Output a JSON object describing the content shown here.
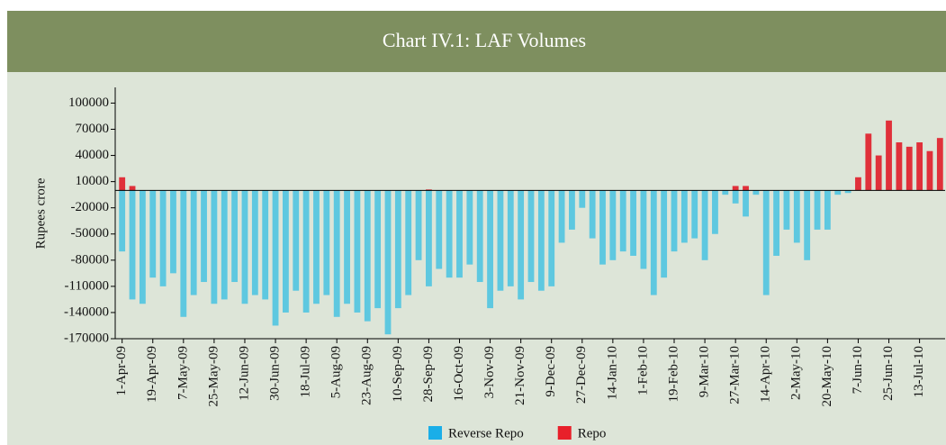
{
  "chart_data": {
    "type": "bar",
    "title": "Chart IV.1: LAF Volumes",
    "y_label": "Rupees crore",
    "categories": [
      "1-Apr-09",
      null,
      null,
      "19-Apr-09",
      null,
      null,
      "7-May-09",
      null,
      null,
      "25-May-09",
      null,
      null,
      "12-Jun-09",
      null,
      null,
      "30-Jun-09",
      null,
      null,
      "18-Jul-09",
      null,
      null,
      "5-Aug-09",
      null,
      null,
      "23-Aug-09",
      null,
      null,
      "10-Sep-09",
      null,
      null,
      "28-Sep-09",
      null,
      null,
      "16-Oct-09",
      null,
      null,
      "3-Nov-09",
      null,
      null,
      "21-Nov-09",
      null,
      null,
      "9-Dec-09",
      null,
      null,
      "27-Dec-09",
      null,
      null,
      "14-Jan-10",
      null,
      null,
      "1-Feb-10",
      null,
      null,
      "19-Feb-10",
      null,
      null,
      "9-Mar-10",
      null,
      null,
      "27-Mar-10",
      null,
      null,
      "14-Apr-10",
      null,
      null,
      "2-May-10",
      null,
      null,
      "20-May-10",
      null,
      null,
      "7-Jun-10",
      null,
      null,
      "25-Jun-10",
      null,
      null,
      "13-Jul-10",
      null,
      null
    ],
    "series": [
      {
        "name": "Reverse Repo",
        "color": "#5ec8e0",
        "legend_color": "#1aaee8",
        "values": [
          -70000,
          -125000,
          -130000,
          -100000,
          -110000,
          -95000,
          -145000,
          -120000,
          -105000,
          -130000,
          -125000,
          -105000,
          -130000,
          -120000,
          -125000,
          -155000,
          -140000,
          -115000,
          -140000,
          -130000,
          -120000,
          -145000,
          -130000,
          -140000,
          -150000,
          -135000,
          -165000,
          -135000,
          -120000,
          -80000,
          -110000,
          -90000,
          -100000,
          -100000,
          -85000,
          -105000,
          -135000,
          -115000,
          -110000,
          -125000,
          -105000,
          -115000,
          -110000,
          -60000,
          -45000,
          -20000,
          -55000,
          -85000,
          -80000,
          -70000,
          -75000,
          -90000,
          -120000,
          -100000,
          -70000,
          -60000,
          -55000,
          -80000,
          -50000,
          -5000,
          -15000,
          -30000,
          -5000,
          -120000,
          -75000,
          -45000,
          -60000,
          -80000,
          -45000,
          -45000,
          -5000,
          -3000,
          0,
          0,
          0,
          0,
          0,
          0,
          0,
          0,
          0
        ]
      },
      {
        "name": "Repo",
        "color": "#e0303a",
        "legend_color": "#e8202a",
        "values": [
          15000,
          5000,
          0,
          0,
          0,
          0,
          0,
          0,
          0,
          0,
          0,
          0,
          0,
          0,
          0,
          0,
          0,
          0,
          0,
          0,
          0,
          0,
          0,
          0,
          0,
          0,
          0,
          0,
          0,
          0,
          1000,
          0,
          0,
          0,
          0,
          0,
          0,
          0,
          0,
          0,
          0,
          0,
          0,
          0,
          0,
          0,
          0,
          0,
          0,
          0,
          0,
          0,
          0,
          0,
          0,
          0,
          0,
          0,
          0,
          0,
          5000,
          5000,
          0,
          0,
          0,
          0,
          0,
          0,
          0,
          0,
          0,
          0,
          15000,
          65000,
          40000,
          80000,
          55000,
          50000,
          55000,
          45000,
          60000
        ]
      }
    ],
    "ylim": [
      -170000,
      118000
    ],
    "yticks": [
      -170000,
      -140000,
      -110000,
      -80000,
      -50000,
      -20000,
      10000,
      40000,
      70000,
      100000
    ]
  }
}
